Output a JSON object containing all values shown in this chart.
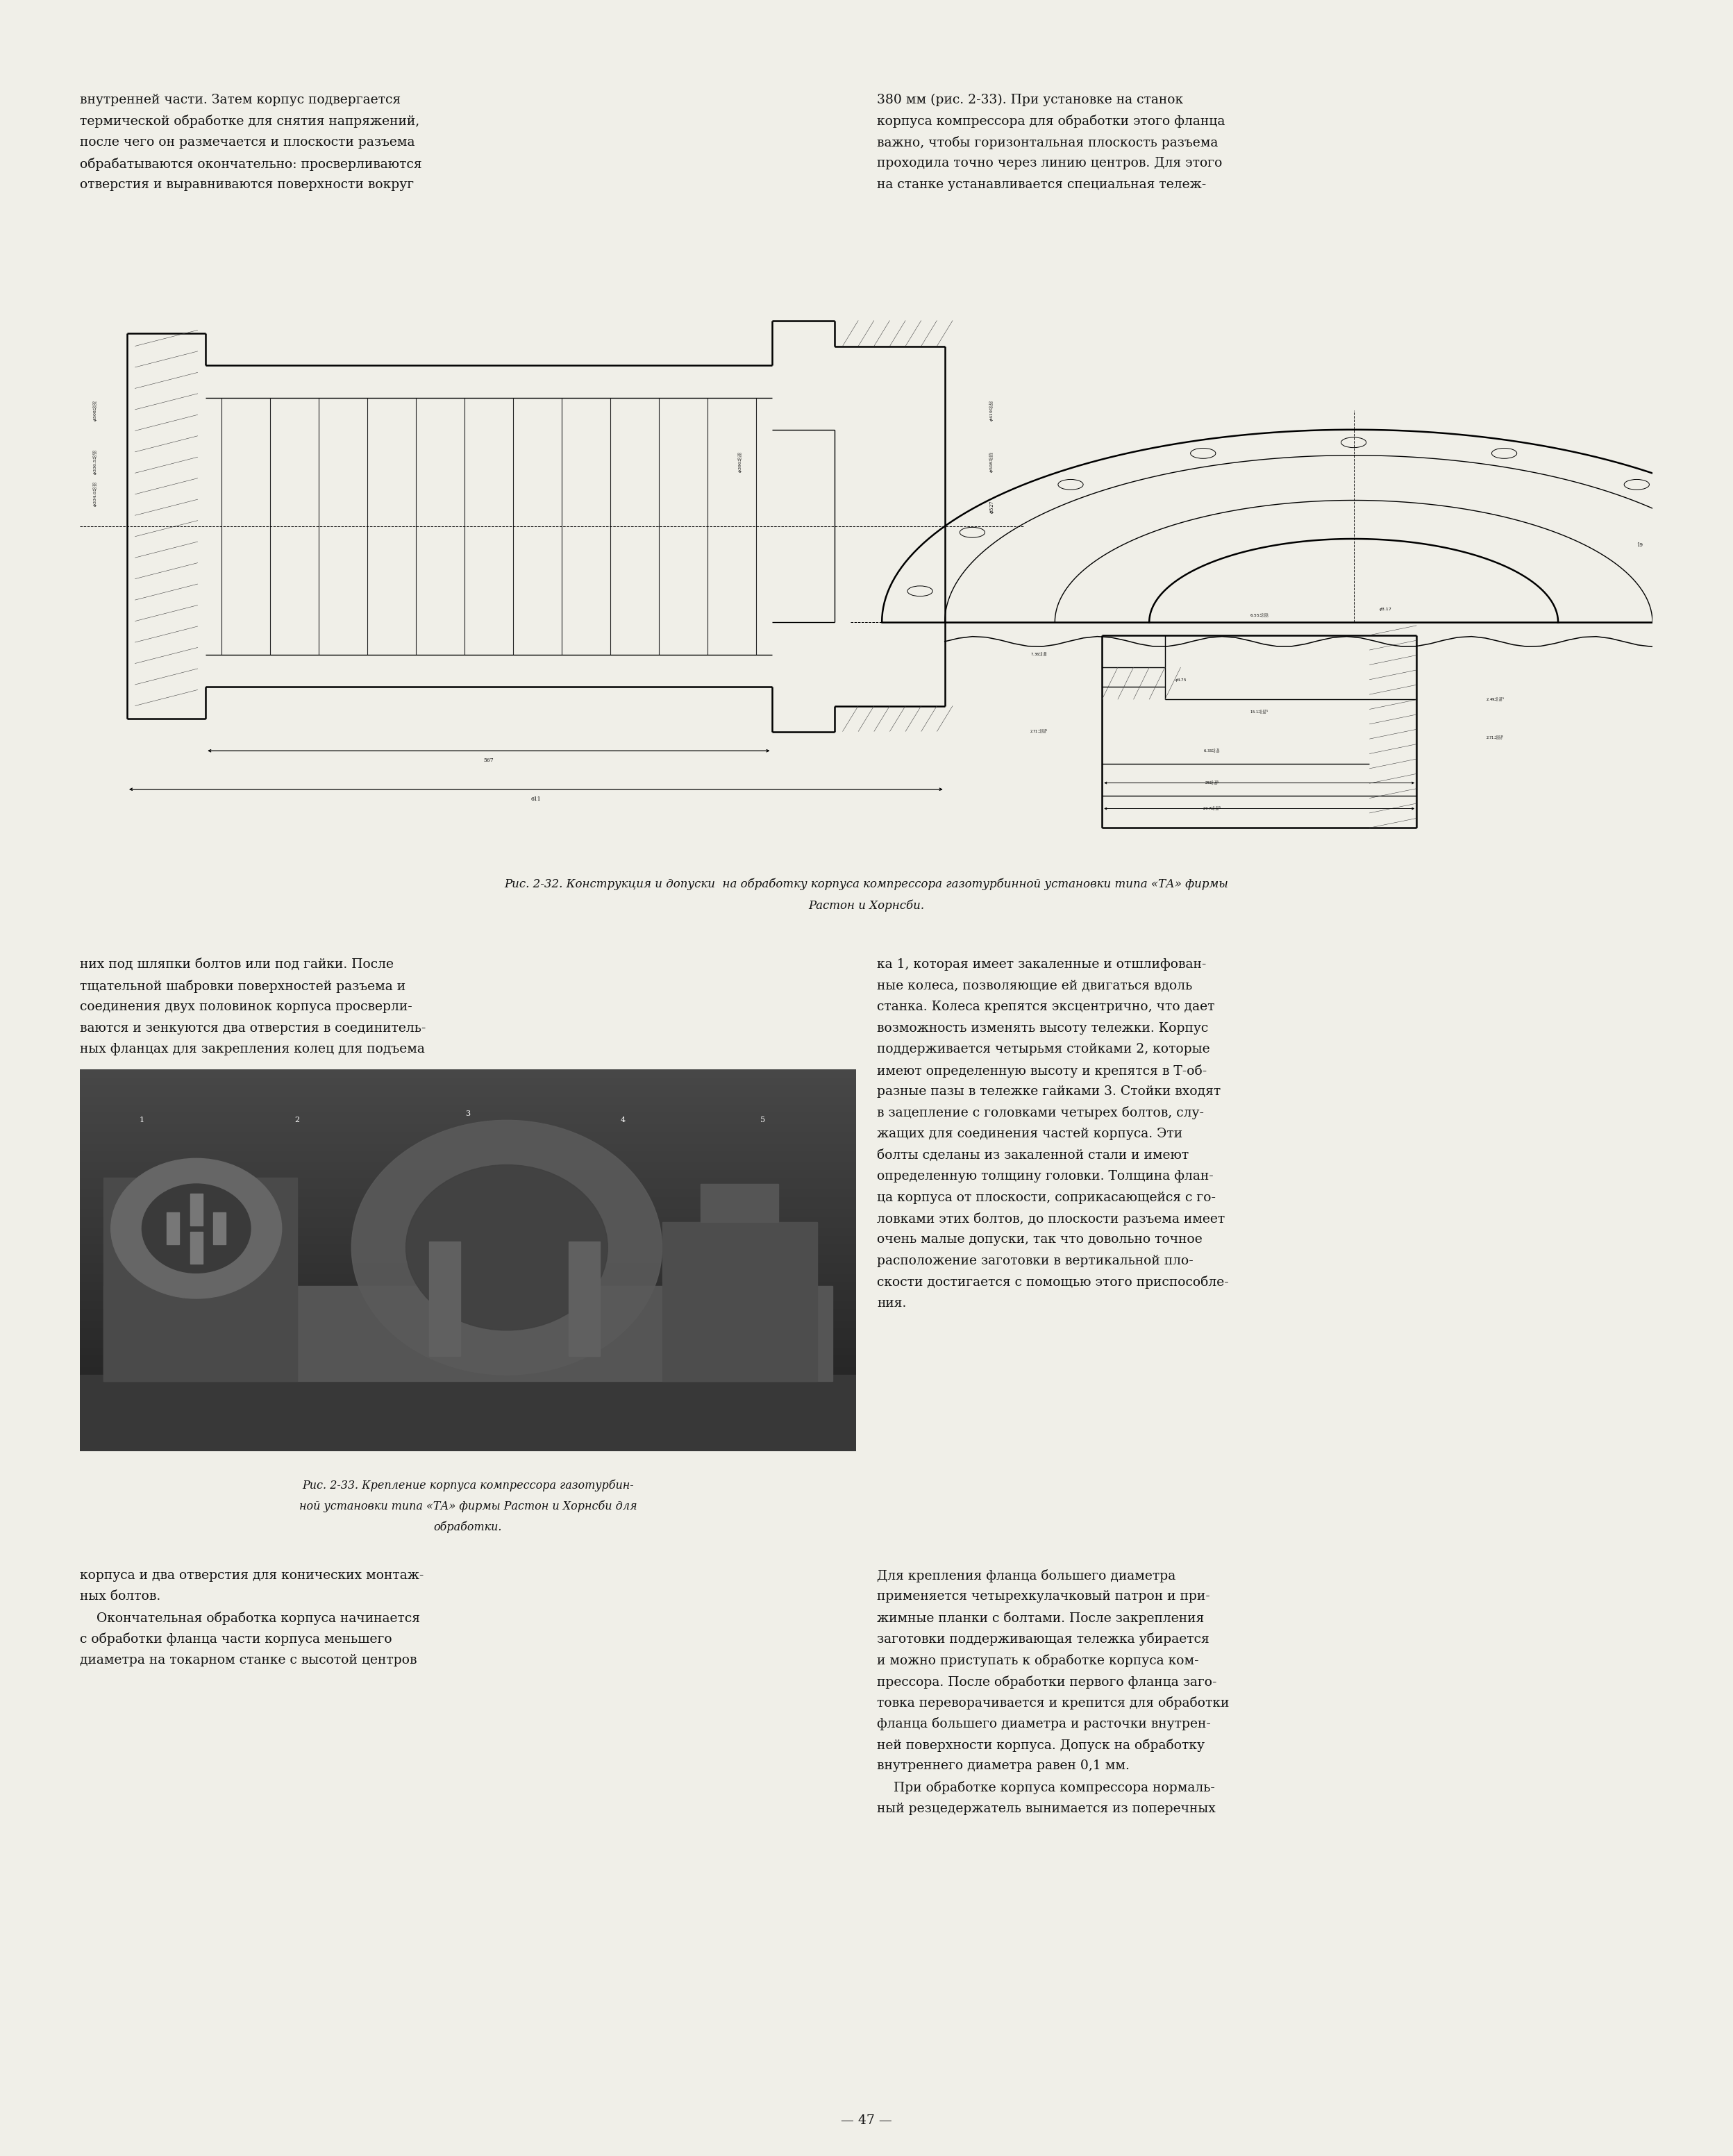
{
  "page_bg": "#f0efe8",
  "text_color": "#111111",
  "figure_width": 24.96,
  "figure_height": 31.05,
  "top_text_left": "внутренней части. Затем корпус подвергается\nтермической обработке для снятия напряжений,\nпосле чего он размечается и плоскости разъема\nобрабатываются окончательно: просверливаются\nотверстия и выравниваются поверхности вокруг",
  "top_text_right": "380 мм (рис. 2-33). При установке на станок\nкорпуса компрессора для обработки этого фланца\nважно, чтобы горизонтальная плоскость разъема\nпроходила точно через линию центров. Для этого\nна станке устанавливается специальная тележ-",
  "fig_caption_32": "Рис. 2-32. Конструкция и допуски  на обработку корпуса компрессора газотурбинной установки типа «ТА» фирмы\nРастон и Хорнсби.",
  "mid_text_left_1": "них под шляпки болтов или под гайки. После\nтщательной шабровки поверхностей разъема и\nсоединения двух половинок корпуса просверли-\nваются и зенкуются два отверстия в соединитель-\nных фланцах для закрепления колец для подъема",
  "mid_text_right_1": "ка 1, которая имеет закаленные и отшлифован-\nные колеса, позволяющие ей двигаться вдоль\nстанка. Колеса крепятся эксцентрично, что дает\nвозможность изменять высоту тележки. Корпус\nподдерживается четырьмя стойками 2, которые\nимеют определенную высоту и крепятся в Т-об-\nразные пазы в тележке гайками 3. Стойки входят\nв зацепление с головками четырех болтов, слу-\nжащих для соединения частей корпуса. Эти\nболты сделаны из закаленной стали и имеют\nопределенную толщину головки. Толщина флан-\nца корпуса от плоскости, соприкасающейся с го-\nловками этих болтов, до плоскости разъема имеет\nочень малые допуски, так что довольно точное\nрасположение заготовки в вертикальной пло-\nскости достигается с помощью этого приспособле-\nния.",
  "fig_caption_33": "Рис. 2-33. Крепление корпуса компрессора газотурбин-\nной установки типа «ТА» фирмы Растон и Хорнсби для\nобработки.",
  "bottom_text_left": "корпуса и два отверстия для конических монтаж-\nных болтов.\n    Окончательная обработка корпуса начинается\nс обработки фланца части корпуса меньшего\nдиаметра на токарном станке с высотой центров",
  "bottom_text_right": "Для крепления фланца большего диаметра\nприменяется четырехкулачковый патрон и при-\nжимные планки с болтами. После закрепления\nзаготовки поддерживающая тележка убирается\nи можно приступать к обработке корпуса ком-\nпрессора. После обработки первого фланца заго-\nтовка переворачивается и крепится для обработки\nфланца большего диаметра и расточки внутрен-\nней поверхности корпуса. Допуск на обработку\nвнутреннего диаметра равен 0,1 мм.\n    При обработке корпуса компрессора нормаль-\nный резцедержатель вынимается из поперечных",
  "page_number": "— 47 —"
}
